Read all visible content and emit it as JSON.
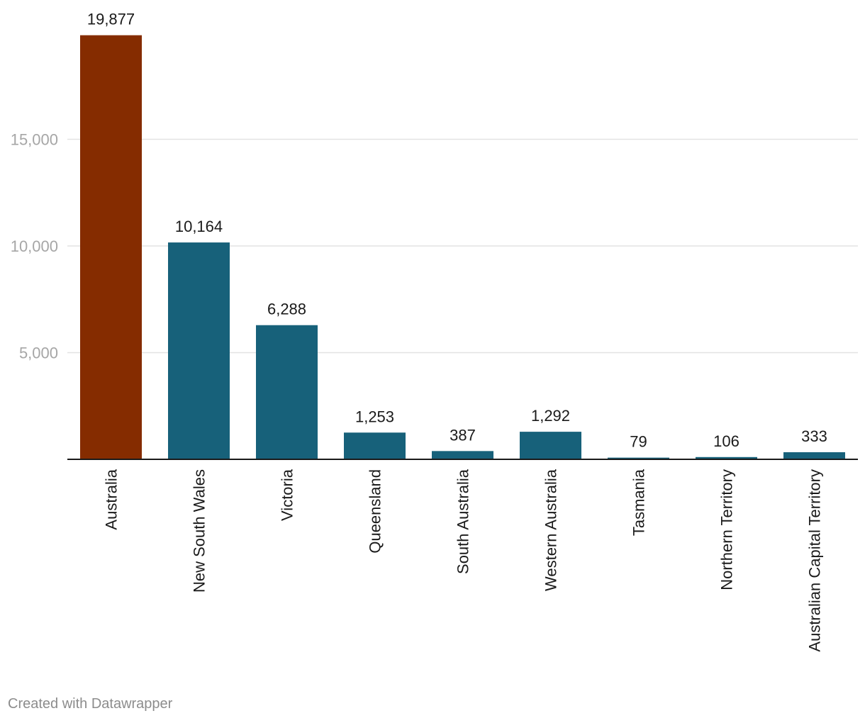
{
  "chart_data": {
    "type": "bar",
    "title": "",
    "xlabel": "",
    "ylabel": "",
    "categories": [
      "Australia",
      "New South Wales",
      "Victoria",
      "Queensland",
      "South Australia",
      "Western Australia",
      "Tasmania",
      "Northern Territory",
      "Australian Capital Territory"
    ],
    "values": [
      19877,
      10164,
      6288,
      1253,
      387,
      1292,
      79,
      106,
      333
    ],
    "value_labels": [
      "19,877",
      "10,164",
      "6,288",
      "1,253",
      "387",
      "1,292",
      "79",
      "106",
      "333"
    ],
    "highlight_category": "Australia",
    "colors": {
      "highlight": "#852c00",
      "default": "#17617a",
      "grid": "#e3e3e3",
      "baseline": "#1a1a1a"
    },
    "ylim": [
      0,
      20000
    ],
    "yticks": [
      5000,
      10000,
      15000
    ],
    "ytick_labels": [
      "5,000",
      "10,000",
      "15,000"
    ],
    "grid": true,
    "legend": "none"
  },
  "footer": {
    "credit": "Created with Datawrapper"
  }
}
